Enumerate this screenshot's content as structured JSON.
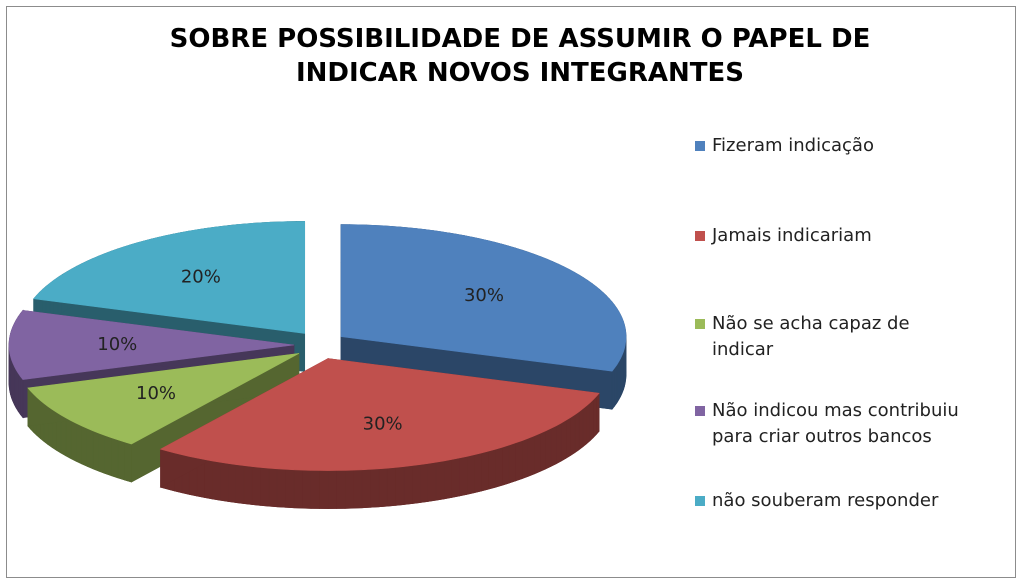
{
  "chart_data": {
    "type": "pie3d",
    "title": "SOBRE POSSIBILIDADE DE ASSUMIR O PAPEL DE INDICAR NOVOS INTEGRANTES",
    "categories": [
      "Fizeram indicação",
      "Jamais indicariam",
      "Não se acha capaz de indicar",
      "Não indicou mas contribuiu para criar outros bancos",
      "não souberam responder"
    ],
    "values": [
      30,
      30,
      10,
      10,
      20
    ],
    "value_labels": [
      "30%",
      "30%",
      "10%",
      "10%",
      "20%"
    ],
    "colors": [
      "#4f81bd",
      "#c0504d",
      "#9bbb59",
      "#8064a2",
      "#4bacc6"
    ],
    "legend": "right"
  }
}
